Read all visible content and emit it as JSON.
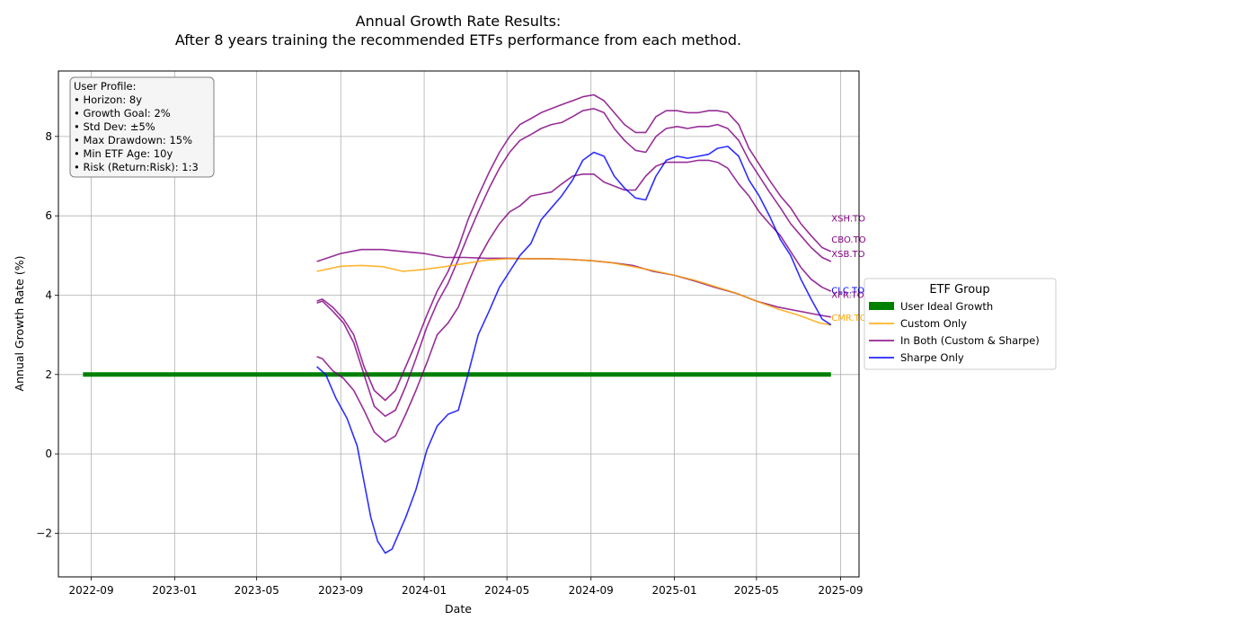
{
  "chart_data": {
    "type": "line",
    "title": "Annual Growth Rate Results:",
    "subtitle": "After 8 years training the recommended ETFs performance from each method.",
    "xlabel": "Date",
    "ylabel": "Annual Growth Rate (%)",
    "xlim": [
      "2022-07-15",
      "2025-09-28"
    ],
    "ylim": [
      -3.1,
      9.65
    ],
    "x_ticks": [
      "2022-09",
      "2023-01",
      "2023-05",
      "2023-09",
      "2024-01",
      "2024-05",
      "2024-09",
      "2025-01",
      "2025-05",
      "2025-09"
    ],
    "y_ticks": [
      -2,
      0,
      2,
      4,
      6,
      8
    ],
    "y_tick_labels": [
      "−2",
      "0",
      "2",
      "4",
      "6",
      "8"
    ],
    "grid": true,
    "legend": {
      "title": "ETF Group",
      "placement": "outside-right",
      "entries": [
        {
          "label": "User Ideal Growth",
          "color": "#008000",
          "kind": "bar"
        },
        {
          "label": "Custom Only",
          "color": "#FFA500",
          "kind": "line"
        },
        {
          "label": "In Both (Custom & Sharpe)",
          "color": "#800080",
          "kind": "line"
        },
        {
          "label": "Sharpe Only",
          "color": "#0000FF",
          "kind": "line"
        }
      ]
    },
    "ideal": {
      "x": [
        "2022-08-20",
        "2025-08-18"
      ],
      "y": [
        2,
        2
      ],
      "color": "#008000"
    },
    "series": [
      {
        "name": "XSH.TO",
        "group": "In Both (Custom & Sharpe)",
        "color": "#800080",
        "x": [
          "2023-07-28",
          "2023-08-05",
          "2023-08-20",
          "2023-09-05",
          "2023-09-20",
          "2023-10-05",
          "2023-10-20",
          "2023-11-05",
          "2023-11-20",
          "2023-12-05",
          "2023-12-20",
          "2024-01-05",
          "2024-01-20",
          "2024-02-05",
          "2024-02-20",
          "2024-03-05",
          "2024-03-20",
          "2024-04-05",
          "2024-04-20",
          "2024-05-05",
          "2024-05-20",
          "2024-06-05",
          "2024-06-20",
          "2024-07-05",
          "2024-07-20",
          "2024-08-05",
          "2024-08-20",
          "2024-09-05",
          "2024-09-20",
          "2024-10-05",
          "2024-10-20",
          "2024-11-05",
          "2024-11-20",
          "2024-12-05",
          "2024-12-20",
          "2025-01-05",
          "2025-01-20",
          "2025-02-05",
          "2025-02-20",
          "2025-03-05",
          "2025-03-20",
          "2025-04-05",
          "2025-04-20",
          "2025-05-05",
          "2025-05-20",
          "2025-06-05",
          "2025-06-20",
          "2025-07-05",
          "2025-07-20",
          "2025-08-05",
          "2025-08-18"
        ],
        "y": [
          3.85,
          3.9,
          3.7,
          3.4,
          3.0,
          2.2,
          1.6,
          1.35,
          1.6,
          2.2,
          2.8,
          3.5,
          4.1,
          4.6,
          5.2,
          5.9,
          6.5,
          7.1,
          7.6,
          8.0,
          8.3,
          8.45,
          8.6,
          8.7,
          8.8,
          8.9,
          9.0,
          9.05,
          8.9,
          8.6,
          8.3,
          8.1,
          8.1,
          8.5,
          8.65,
          8.65,
          8.6,
          8.6,
          8.65,
          8.65,
          8.6,
          8.3,
          7.7,
          7.3,
          6.9,
          6.5,
          6.2,
          5.8,
          5.5,
          5.2,
          5.1
        ]
      },
      {
        "name": "CBO.TO",
        "group": "In Both (Custom & Sharpe)",
        "color": "#800080",
        "x": [
          "2023-07-28",
          "2023-08-05",
          "2023-08-20",
          "2023-09-05",
          "2023-09-20",
          "2023-10-05",
          "2023-10-20",
          "2023-11-05",
          "2023-11-20",
          "2023-12-05",
          "2023-12-20",
          "2024-01-05",
          "2024-01-20",
          "2024-02-05",
          "2024-02-20",
          "2024-03-05",
          "2024-03-20",
          "2024-04-05",
          "2024-04-20",
          "2024-05-05",
          "2024-05-20",
          "2024-06-05",
          "2024-06-20",
          "2024-07-05",
          "2024-07-20",
          "2024-08-05",
          "2024-08-20",
          "2024-09-05",
          "2024-09-20",
          "2024-10-05",
          "2024-10-20",
          "2024-11-05",
          "2024-11-20",
          "2024-12-05",
          "2024-12-20",
          "2025-01-05",
          "2025-01-20",
          "2025-02-05",
          "2025-02-20",
          "2025-03-05",
          "2025-03-20",
          "2025-04-05",
          "2025-04-20",
          "2025-05-05",
          "2025-05-20",
          "2025-06-05",
          "2025-06-20",
          "2025-07-05",
          "2025-07-20",
          "2025-08-05",
          "2025-08-18"
        ],
        "y": [
          3.8,
          3.85,
          3.6,
          3.3,
          2.8,
          2.0,
          1.2,
          0.95,
          1.1,
          1.7,
          2.4,
          3.2,
          3.8,
          4.3,
          4.9,
          5.5,
          6.1,
          6.7,
          7.2,
          7.6,
          7.9,
          8.05,
          8.2,
          8.3,
          8.35,
          8.5,
          8.65,
          8.7,
          8.6,
          8.2,
          7.9,
          7.65,
          7.6,
          8.0,
          8.2,
          8.25,
          8.2,
          8.25,
          8.25,
          8.3,
          8.2,
          7.9,
          7.4,
          7.0,
          6.6,
          6.2,
          5.8,
          5.5,
          5.2,
          4.95,
          4.85
        ]
      },
      {
        "name": "XSB.TO",
        "group": "In Both (Custom & Sharpe)",
        "color": "#800080",
        "x": [
          "2023-07-28",
          "2023-08-05",
          "2023-08-20",
          "2023-09-05",
          "2023-09-20",
          "2023-10-05",
          "2023-10-20",
          "2023-11-05",
          "2023-11-20",
          "2023-12-05",
          "2023-12-20",
          "2024-01-05",
          "2024-01-20",
          "2024-02-05",
          "2024-02-20",
          "2024-03-05",
          "2024-03-20",
          "2024-04-05",
          "2024-04-20",
          "2024-05-05",
          "2024-05-20",
          "2024-06-05",
          "2024-06-20",
          "2024-07-05",
          "2024-07-20",
          "2024-08-05",
          "2024-08-20",
          "2024-09-05",
          "2024-09-20",
          "2024-10-05",
          "2024-10-20",
          "2024-11-05",
          "2024-11-20",
          "2024-12-05",
          "2024-12-20",
          "2025-01-05",
          "2025-01-20",
          "2025-02-05",
          "2025-02-20",
          "2025-03-05",
          "2025-03-20",
          "2025-04-05",
          "2025-04-20",
          "2025-05-05",
          "2025-05-20",
          "2025-06-05",
          "2025-06-20",
          "2025-07-05",
          "2025-07-20",
          "2025-08-05",
          "2025-08-18"
        ],
        "y": [
          2.45,
          2.4,
          2.1,
          1.9,
          1.6,
          1.1,
          0.55,
          0.3,
          0.45,
          1.0,
          1.6,
          2.3,
          3.0,
          3.3,
          3.7,
          4.3,
          4.9,
          5.4,
          5.8,
          6.1,
          6.25,
          6.5,
          6.55,
          6.6,
          6.8,
          7.0,
          7.05,
          7.05,
          6.85,
          6.75,
          6.65,
          6.65,
          7.0,
          7.25,
          7.35,
          7.35,
          7.35,
          7.4,
          7.4,
          7.35,
          7.2,
          6.8,
          6.5,
          6.1,
          5.8,
          5.5,
          5.1,
          4.7,
          4.4,
          4.2,
          4.1
        ]
      },
      {
        "name": "XFR.TO",
        "group": "In Both (Custom & Sharpe)",
        "color": "#800080",
        "x": [
          "2023-07-28",
          "2023-09-01",
          "2023-10-01",
          "2023-11-01",
          "2023-12-01",
          "2024-01-01",
          "2024-02-01",
          "2024-03-01",
          "2024-04-01",
          "2024-05-01",
          "2024-06-01",
          "2024-07-01",
          "2024-08-01",
          "2024-09-01",
          "2024-10-01",
          "2024-11-01",
          "2024-12-01",
          "2025-01-01",
          "2025-02-01",
          "2025-03-01",
          "2025-04-01",
          "2025-05-01",
          "2025-06-01",
          "2025-07-01",
          "2025-08-01",
          "2025-08-18"
        ],
        "y": [
          4.85,
          5.05,
          5.15,
          5.15,
          5.1,
          5.05,
          4.95,
          4.95,
          4.93,
          4.93,
          4.92,
          4.92,
          4.9,
          4.87,
          4.82,
          4.75,
          4.6,
          4.5,
          4.35,
          4.2,
          4.05,
          3.85,
          3.7,
          3.6,
          3.5,
          3.45
        ]
      },
      {
        "name": "CMR.TO",
        "group": "Custom Only",
        "color": "#FFA500",
        "x": [
          "2023-07-28",
          "2023-09-01",
          "2023-10-01",
          "2023-11-01",
          "2023-12-01",
          "2024-01-01",
          "2024-02-01",
          "2024-03-01",
          "2024-04-01",
          "2024-05-01",
          "2024-06-01",
          "2024-07-01",
          "2024-08-01",
          "2024-09-01",
          "2024-10-01",
          "2024-11-01",
          "2024-12-01",
          "2025-01-01",
          "2025-02-01",
          "2025-03-01",
          "2025-04-01",
          "2025-05-01",
          "2025-06-01",
          "2025-07-01",
          "2025-08-01",
          "2025-08-18"
        ],
        "y": [
          4.6,
          4.73,
          4.75,
          4.72,
          4.6,
          4.65,
          4.72,
          4.8,
          4.88,
          4.92,
          4.92,
          4.92,
          4.9,
          4.87,
          4.82,
          4.72,
          4.62,
          4.5,
          4.37,
          4.22,
          4.05,
          3.85,
          3.65,
          3.5,
          3.3,
          3.25
        ]
      },
      {
        "name": "CLC.TO",
        "group": "Sharpe Only",
        "color": "#0000FF",
        "x": [
          "2023-07-28",
          "2023-08-10",
          "2023-08-25",
          "2023-09-10",
          "2023-09-25",
          "2023-10-05",
          "2023-10-15",
          "2023-10-25",
          "2023-11-05",
          "2023-11-15",
          "2023-11-25",
          "2023-12-05",
          "2023-12-20",
          "2024-01-05",
          "2024-01-20",
          "2024-02-05",
          "2024-02-20",
          "2024-03-05",
          "2024-03-20",
          "2024-04-05",
          "2024-04-20",
          "2024-05-05",
          "2024-05-20",
          "2024-06-05",
          "2024-06-20",
          "2024-07-05",
          "2024-07-20",
          "2024-08-05",
          "2024-08-20",
          "2024-09-05",
          "2024-09-20",
          "2024-10-05",
          "2024-10-20",
          "2024-11-05",
          "2024-11-20",
          "2024-12-05",
          "2024-12-20",
          "2025-01-05",
          "2025-01-20",
          "2025-02-05",
          "2025-02-20",
          "2025-03-05",
          "2025-03-20",
          "2025-04-05",
          "2025-04-20",
          "2025-05-05",
          "2025-05-20",
          "2025-06-05",
          "2025-06-20",
          "2025-07-05",
          "2025-07-20",
          "2025-08-05",
          "2025-08-18"
        ],
        "y": [
          2.2,
          2.0,
          1.4,
          0.9,
          0.2,
          -0.7,
          -1.6,
          -2.2,
          -2.5,
          -2.4,
          -2.0,
          -1.6,
          -0.9,
          0.1,
          0.7,
          1.0,
          1.1,
          2.0,
          3.0,
          3.6,
          4.2,
          4.6,
          5.0,
          5.3,
          5.9,
          6.2,
          6.5,
          6.9,
          7.4,
          7.6,
          7.5,
          7.0,
          6.7,
          6.45,
          6.4,
          7.0,
          7.4,
          7.5,
          7.45,
          7.5,
          7.55,
          7.7,
          7.75,
          7.5,
          6.9,
          6.5,
          6.0,
          5.4,
          5.0,
          4.4,
          3.9,
          3.4,
          3.25
        ]
      }
    ],
    "end_labels": [
      {
        "text": "XSH.TO",
        "color": "#800080",
        "y": 5.95
      },
      {
        "text": "CBO.TO",
        "color": "#800080",
        "y": 5.42
      },
      {
        "text": "XSB.TO",
        "color": "#800080",
        "y": 5.05
      },
      {
        "text": "CLC.TO",
        "color": "#0000FF",
        "y": 4.13
      },
      {
        "text": "XFR.TO",
        "color": "#800080",
        "y": 4.02
      },
      {
        "text": "CMR.TO",
        "color": "#FFA500",
        "y": 3.45
      }
    ]
  },
  "profile_box": {
    "lines": [
      "User Profile:",
      "• Horizon: 8y",
      "• Growth Goal: 2%",
      "• Std Dev: ±5%",
      "• Max Drawdown: 15%",
      "• Min ETF Age: 10y",
      "• Risk (Return:Risk): 1:3"
    ]
  }
}
